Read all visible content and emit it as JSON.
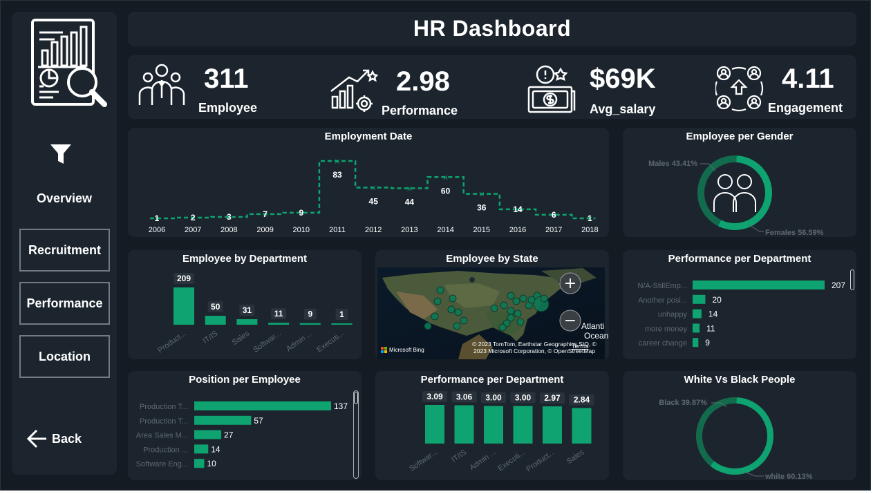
{
  "header": {
    "title": "HR Dashboard"
  },
  "sidebar": {
    "logo_icon": "report-analysis-icon",
    "filter_icon": "funnel-icon",
    "active": "Overview",
    "items": [
      "Recruitment",
      "Performance",
      "Location"
    ],
    "back": "Back"
  },
  "kpis": [
    {
      "value": "311",
      "label": "Employee",
      "icon": "employees-group-icon"
    },
    {
      "value": "2.98",
      "label": "Performance",
      "icon": "growth-chart-icon"
    },
    {
      "value": "$69K",
      "label": "Avg_salary",
      "icon": "salary-money-icon"
    },
    {
      "value": "4.11",
      "label": "Engagement",
      "icon": "people-exchange-icon"
    }
  ],
  "colors": {
    "accent": "#0ea370",
    "dark_accent": "#126b4d",
    "panel": "#1c252e",
    "background": "#141b22"
  },
  "map": {
    "title": "Employee by State",
    "attribution": "© 2023 TomTom, Earthstar Geographics SIO, © 2023 Microsoft Corporation, © OpenStreetMap",
    "terms": "Terms",
    "brand": "Microsoft Bing",
    "ocean_label_1": "Atlanti",
    "ocean_label_2": "Ocean",
    "zoom_in": "+",
    "zoom_out": "−"
  },
  "chart_data": [
    {
      "id": "employment-date",
      "type": "line",
      "title": "Employment Date",
      "x": [
        "2006",
        "2007",
        "2008",
        "2009",
        "2010",
        "2011",
        "2012",
        "2013",
        "2014",
        "2015",
        "2016",
        "2017",
        "2018"
      ],
      "values": [
        1,
        2,
        3,
        7,
        9,
        83,
        45,
        44,
        60,
        36,
        14,
        6,
        1
      ],
      "step": true
    },
    {
      "id": "employee-per-gender",
      "type": "pie",
      "title": "Employee per Gender",
      "labels": [
        "Males 43.41%",
        "Females 56.59%"
      ],
      "values": [
        43.41,
        56.59
      ]
    },
    {
      "id": "employee-by-department",
      "type": "bar",
      "title": "Employee by Department",
      "categories": [
        "Product...",
        "IT/IS",
        "Sales",
        "Softwar...",
        "Admin ...",
        "Executi..."
      ],
      "values": [
        209,
        50,
        31,
        11,
        9,
        1
      ]
    },
    {
      "id": "performance-per-department-h",
      "type": "bar",
      "orientation": "horizontal",
      "title": "Performance per Department",
      "categories": [
        "N/A-StillEmp...",
        "Another posi...",
        "unhappy",
        "more money",
        "career change"
      ],
      "values": [
        207,
        20,
        14,
        11,
        9
      ]
    },
    {
      "id": "position-per-employee",
      "type": "bar",
      "orientation": "horizontal",
      "title": "Position per Employee",
      "categories": [
        "Production T...",
        "Production T...",
        "Area Sales M...",
        "Production ...",
        "Software Eng..."
      ],
      "values": [
        137,
        57,
        27,
        14,
        10
      ]
    },
    {
      "id": "performance-per-department-v",
      "type": "bar",
      "title": "Performance per Department",
      "categories": [
        "Softwar...",
        "IT/IS",
        "Admin ...",
        "Executi...",
        "Product...",
        "Sales"
      ],
      "values": [
        3.09,
        3.06,
        3.0,
        3.0,
        2.97,
        2.84
      ],
      "value_labels": [
        "3.09",
        "3.06",
        "3.00",
        "3.00",
        "2.97",
        "2.84"
      ]
    },
    {
      "id": "white-vs-black",
      "type": "pie",
      "title": "White Vs Black People",
      "labels": [
        "Black 39.87%",
        "white 60.13%"
      ],
      "values": [
        39.87,
        60.13
      ]
    }
  ]
}
